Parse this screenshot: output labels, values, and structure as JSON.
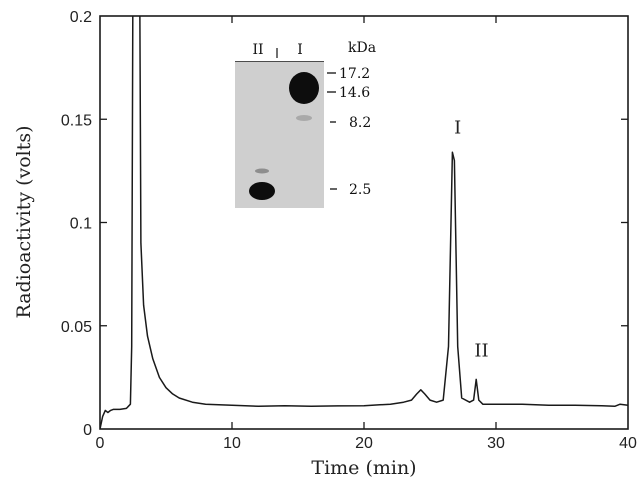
{
  "chart_data": {
    "type": "line",
    "title": "",
    "xlabel": "Time (min)",
    "ylabel": "Radioactivity (volts)",
    "xlim": [
      0,
      40
    ],
    "ylim": [
      0,
      0.2
    ],
    "x_ticks": [
      0,
      10,
      20,
      30,
      40
    ],
    "y_ticks": [
      0,
      0.05,
      0.1,
      0.15,
      0.2
    ],
    "x_tick_labels": [
      "0",
      "10",
      "20",
      "30",
      "40"
    ],
    "y_tick_labels": [
      "0",
      "0.05",
      "0.1",
      "0.15",
      "0.2"
    ],
    "grid": false,
    "legend": "none",
    "line_color": "#1a1a1a",
    "series": [
      {
        "x": [
          0,
          0.2,
          0.4,
          0.6,
          0.8,
          1,
          1.5,
          2,
          2.3,
          2.4,
          2.5,
          3,
          3.1,
          3.3,
          3.6,
          4,
          4.5,
          5,
          5.5,
          6,
          7,
          8,
          10,
          12,
          14,
          16,
          18,
          20,
          22,
          23,
          23.6,
          24,
          24.3,
          24.6,
          25,
          25.5,
          26,
          26.4,
          26.7,
          26.85,
          27.1,
          27.4,
          28,
          28.3,
          28.5,
          28.7,
          29,
          30,
          32,
          34,
          36,
          38,
          39,
          39.4,
          40
        ],
        "y": [
          0,
          0.006,
          0.009,
          0.008,
          0.009,
          0.0095,
          0.0095,
          0.01,
          0.012,
          0.04,
          0.23,
          0.23,
          0.09,
          0.06,
          0.045,
          0.034,
          0.025,
          0.02,
          0.017,
          0.015,
          0.013,
          0.012,
          0.0115,
          0.011,
          0.0113,
          0.011,
          0.0112,
          0.0113,
          0.012,
          0.013,
          0.014,
          0.017,
          0.019,
          0.017,
          0.014,
          0.013,
          0.014,
          0.04,
          0.134,
          0.13,
          0.04,
          0.015,
          0.013,
          0.014,
          0.024,
          0.014,
          0.012,
          0.012,
          0.012,
          0.0115,
          0.0115,
          0.0113,
          0.011,
          0.012,
          0.0115
        ]
      }
    ],
    "annotations": [
      {
        "text": "I",
        "x": 27.1,
        "y": 0.143
      },
      {
        "text": "II",
        "x": 28.9,
        "y": 0.035
      }
    ],
    "inset": {
      "lanes": [
        "II",
        "I"
      ],
      "unit_label": "kDa",
      "markers": [
        "17.2",
        "14.6",
        "8.2",
        "2.5"
      ]
    }
  }
}
